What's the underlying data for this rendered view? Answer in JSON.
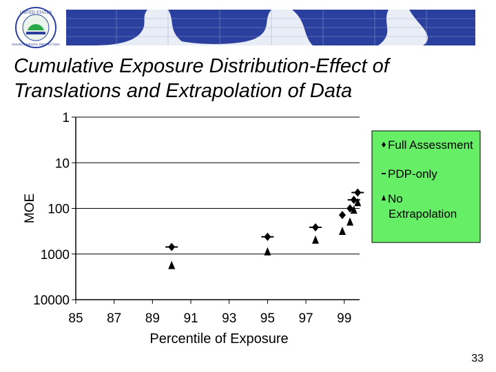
{
  "slide": {
    "title_line1": "Cumulative Exposure Distribution-Effect of",
    "title_line2": "Translations and Extrapolation of Data",
    "page_number": "33",
    "logo": {
      "text_top": "UNITED STATES",
      "text_bottom": "ENVIRONMENTAL PROTECTION"
    }
  },
  "colors": {
    "legend_bg": "#66ee66",
    "map_ocean": "#2a3f9e",
    "map_land": "#e9edf6",
    "series": "#000000"
  },
  "chart_data": {
    "type": "scatter",
    "title": "",
    "xlabel": "Percentile of Exposure",
    "ylabel": "MOE",
    "x_ticks": [
      "85",
      "87",
      "89",
      "91",
      "93",
      "95",
      "97",
      "99"
    ],
    "x_tick_values": [
      85,
      87,
      89,
      91,
      93,
      95,
      97,
      99
    ],
    "y_ticks": [
      "1",
      "10",
      "100",
      "1000",
      "10000"
    ],
    "y_tick_values": [
      1,
      10,
      100,
      1000,
      10000
    ],
    "xlim": [
      85,
      99.8
    ],
    "ylim": [
      1,
      10000
    ],
    "y_scale": "log-inverted",
    "legend_position": "right",
    "series": [
      {
        "name": "Full Assessment",
        "marker": "diamond",
        "points": [
          {
            "x": 90,
            "y": 700
          },
          {
            "x": 95,
            "y": 420
          },
          {
            "x": 97.5,
            "y": 260
          },
          {
            "x": 98.9,
            "y": 140
          },
          {
            "x": 99.3,
            "y": 100
          },
          {
            "x": 99.5,
            "y": 65
          },
          {
            "x": 99.7,
            "y": 45
          }
        ]
      },
      {
        "name": "PDP-only",
        "marker": "dash",
        "points": [
          {
            "x": 90,
            "y": 700
          },
          {
            "x": 95,
            "y": 420
          },
          {
            "x": 97.5,
            "y": 260
          },
          {
            "x": 99.5,
            "y": 65
          },
          {
            "x": 99.7,
            "y": 45
          }
        ]
      },
      {
        "name": "No Extrapolation",
        "marker": "triangle",
        "points": [
          {
            "x": 90,
            "y": 1800
          },
          {
            "x": 95,
            "y": 900
          },
          {
            "x": 97.5,
            "y": 500
          },
          {
            "x": 98.9,
            "y": 320
          },
          {
            "x": 99.3,
            "y": 200
          },
          {
            "x": 99.5,
            "y": 110
          },
          {
            "x": 99.7,
            "y": 75
          }
        ]
      }
    ],
    "legend": [
      {
        "label": "Full Assessment",
        "marker": "diamond"
      },
      {
        "label": "PDP-only",
        "marker": "dash"
      },
      {
        "label": "No Extrapolation",
        "marker": "triangle",
        "lines": [
          "No",
          "Extrapolation"
        ]
      }
    ]
  }
}
